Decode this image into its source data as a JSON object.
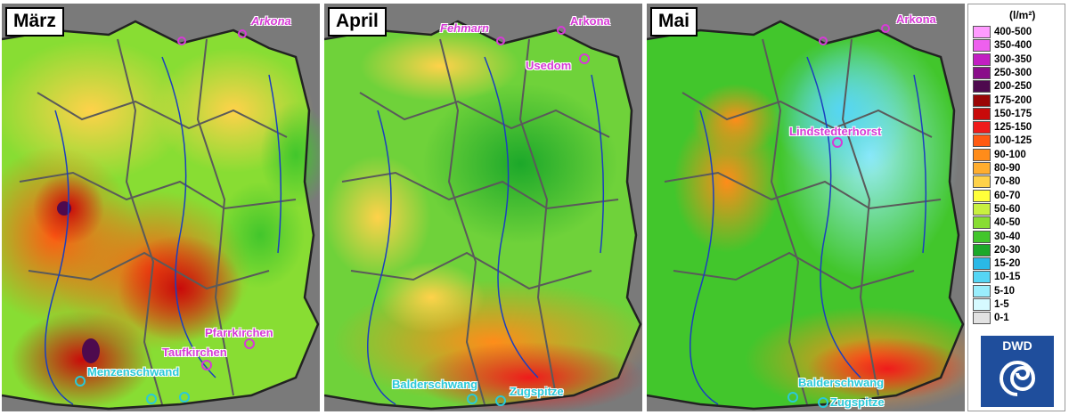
{
  "panels": [
    {
      "month": "März",
      "theme": "red",
      "stations": [
        {
          "label": "Arkona",
          "style": "italic",
          "color": "#d63ad6"
        },
        {
          "label": "Pfarrkirchen",
          "style": "bold",
          "color": "#d63ad6"
        },
        {
          "label": "Taufkirchen",
          "style": "bold",
          "color": "#d63ad6"
        },
        {
          "label": "Menzenschwand",
          "style": "bold",
          "color": "#2ac9d8"
        }
      ]
    },
    {
      "month": "April",
      "theme": "green",
      "stations": [
        {
          "label": "Fehmarn",
          "style": "italic",
          "color": "#d63ad6"
        },
        {
          "label": "Arkona",
          "style": "bold",
          "color": "#d63ad6"
        },
        {
          "label": "Usedom",
          "style": "bold",
          "color": "#d63ad6"
        },
        {
          "label": "Balderschwang",
          "style": "bold",
          "color": "#2ac9d8"
        },
        {
          "label": "Zugspitze",
          "style": "bold",
          "color": "#2ac9d8"
        }
      ]
    },
    {
      "month": "Mai",
      "theme": "dry",
      "stations": [
        {
          "label": "Arkona",
          "style": "bold",
          "color": "#d63ad6"
        },
        {
          "label": "Lindstedterhorst",
          "style": "bold",
          "color": "#d63ad6"
        },
        {
          "label": "Balderschwang",
          "style": "bold",
          "color": "#2ac9d8"
        },
        {
          "label": "Zugspitze",
          "style": "bold",
          "color": "#2ac9d8"
        }
      ]
    }
  ],
  "legend": {
    "unit": "(l/m²)",
    "items": [
      {
        "label": "400-500",
        "color": "#ff9bff"
      },
      {
        "label": "350-400",
        "color": "#ee60ee"
      },
      {
        "label": "300-350",
        "color": "#c21fc2"
      },
      {
        "label": "250-300",
        "color": "#8a0d8a"
      },
      {
        "label": "200-250",
        "color": "#4e0a4e"
      },
      {
        "label": "175-200",
        "color": "#9a0505"
      },
      {
        "label": "150-175",
        "color": "#c90a0a"
      },
      {
        "label": "125-150",
        "color": "#ef1b1b"
      },
      {
        "label": "100-125",
        "color": "#ff5a12"
      },
      {
        "label": "90-100",
        "color": "#ff8c1a"
      },
      {
        "label": "80-90",
        "color": "#ffad2e"
      },
      {
        "label": "70-80",
        "color": "#ffd24a"
      },
      {
        "label": "60-70",
        "color": "#ffff3a"
      },
      {
        "label": "50-60",
        "color": "#c8f040"
      },
      {
        "label": "40-50",
        "color": "#88dd33"
      },
      {
        "label": "30-40",
        "color": "#42c62c"
      },
      {
        "label": "20-30",
        "color": "#1ca82a"
      },
      {
        "label": "15-20",
        "color": "#2ab8e6"
      },
      {
        "label": "10-15",
        "color": "#55d6f5"
      },
      {
        "label": "5-10",
        "color": "#9aeefc"
      },
      {
        "label": "1-5",
        "color": "#d6faff"
      },
      {
        "label": "0-1",
        "color": "#e2e2e2"
      }
    ]
  },
  "logo": {
    "text": "DWD"
  }
}
